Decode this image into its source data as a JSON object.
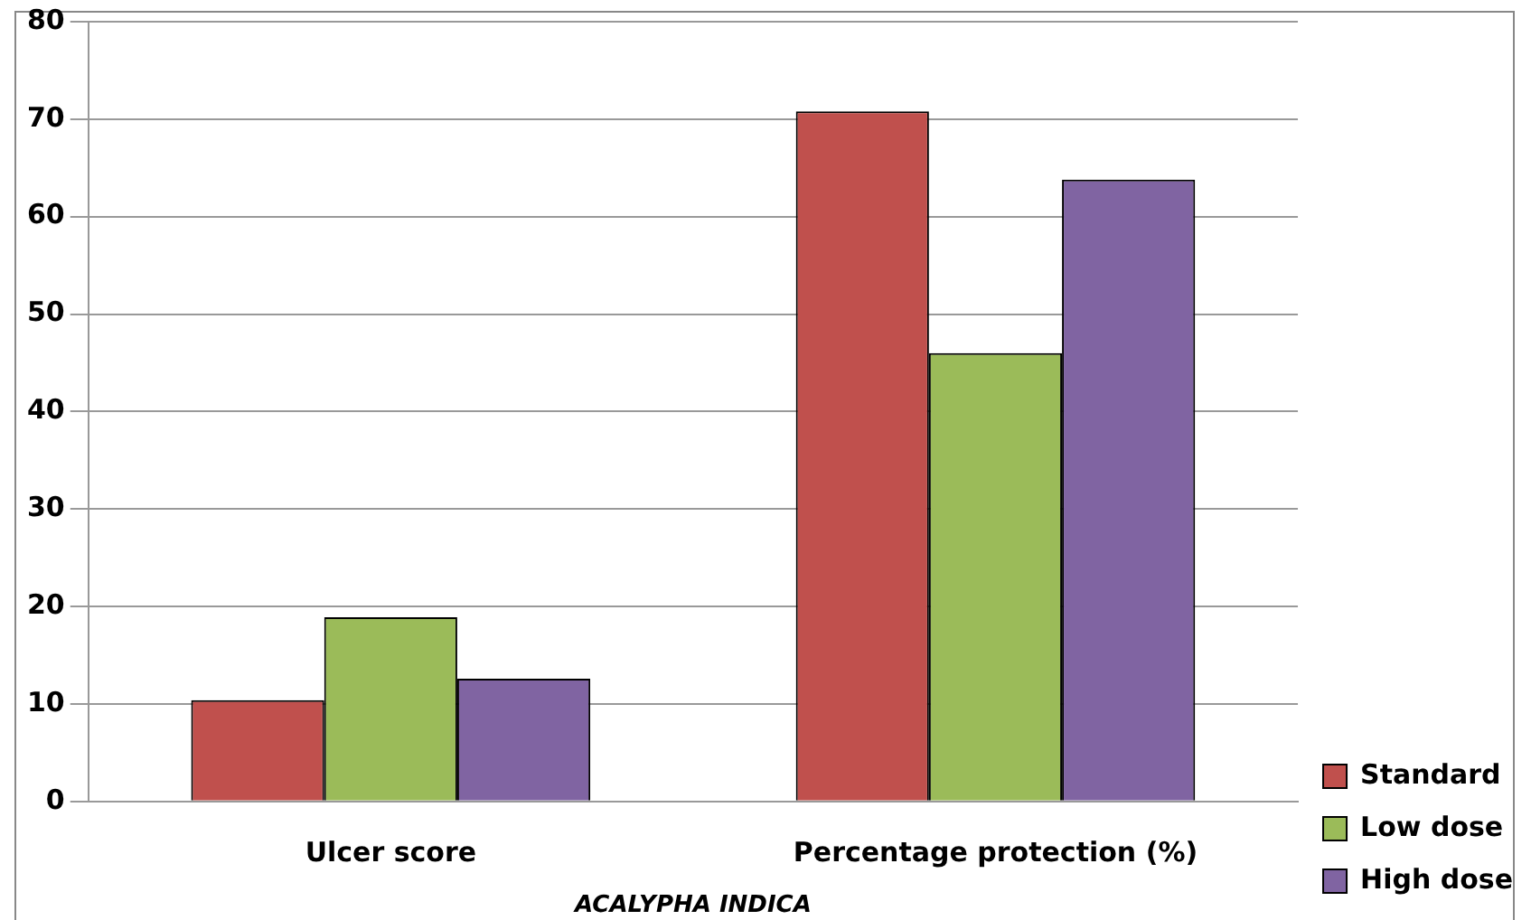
{
  "chart_data": {
    "type": "bar",
    "xlabel": "ACALYPHA INDICA",
    "categories": [
      "Ulcer score",
      "Percentage protection (%)"
    ],
    "series": [
      {
        "name": "Standard",
        "color": "#c0504d",
        "values": [
          10.4,
          70.8
        ]
      },
      {
        "name": "Low dose",
        "color": "#9bbb59",
        "values": [
          18.9,
          46.0
        ]
      },
      {
        "name": "High dose",
        "color": "#8064a2",
        "values": [
          12.6,
          63.8
        ]
      }
    ],
    "ylim": [
      0,
      80
    ],
    "yticks": [
      0,
      10,
      20,
      30,
      40,
      50,
      60,
      70,
      80
    ],
    "grid": "y",
    "legend": "bottom right"
  }
}
